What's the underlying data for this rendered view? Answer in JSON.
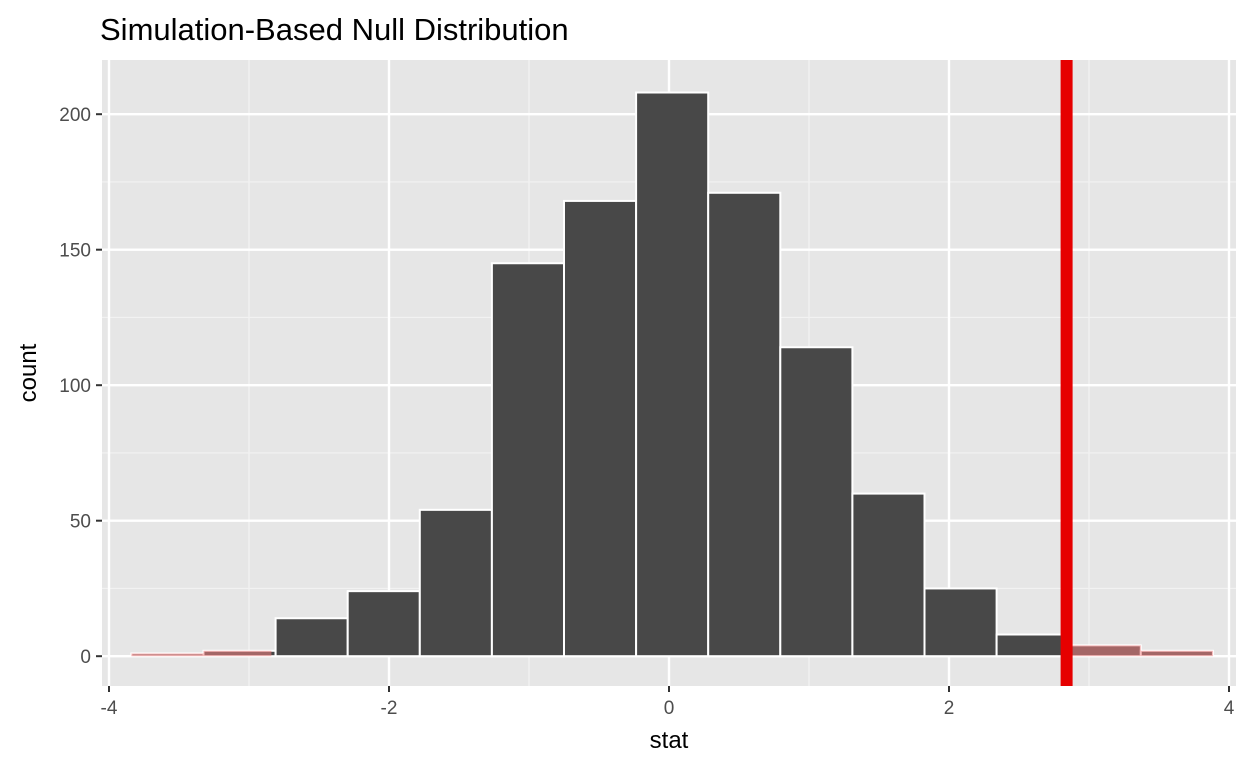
{
  "chart_data": {
    "type": "bar",
    "title": "Simulation-Based Null Distribution",
    "xlabel": "stat",
    "ylabel": "count",
    "xlim": [
      -4.05,
      4.05
    ],
    "ylim": [
      -11,
      220
    ],
    "x_ticks": [
      -4,
      -2,
      0,
      2,
      4
    ],
    "y_ticks": [
      0,
      50,
      100,
      150,
      200
    ],
    "bin_width": 0.515,
    "bins": [
      {
        "x0": -3.84,
        "x1": -3.325,
        "count": 1
      },
      {
        "x0": -3.325,
        "x1": -2.81,
        "count": 2
      },
      {
        "x0": -2.81,
        "x1": -2.295,
        "count": 14
      },
      {
        "x0": -2.295,
        "x1": -1.78,
        "count": 24
      },
      {
        "x0": -1.78,
        "x1": -1.265,
        "count": 54
      },
      {
        "x0": -1.265,
        "x1": -0.75,
        "count": 145
      },
      {
        "x0": -0.75,
        "x1": -0.235,
        "count": 168
      },
      {
        "x0": -0.235,
        "x1": 0.28,
        "count": 208
      },
      {
        "x0": 0.28,
        "x1": 0.795,
        "count": 171
      },
      {
        "x0": 0.795,
        "x1": 1.31,
        "count": 114
      },
      {
        "x0": 1.31,
        "x1": 1.825,
        "count": 60
      },
      {
        "x0": 1.825,
        "x1": 2.34,
        "count": 25
      },
      {
        "x0": 2.34,
        "x1": 2.855,
        "count": 8
      },
      {
        "x0": 2.855,
        "x1": 3.37,
        "count": 4
      },
      {
        "x0": 3.37,
        "x1": 3.885,
        "count": 2
      }
    ],
    "observed_stat": 2.84,
    "shade_direction": "both",
    "shade_regions": [
      [
        -4.05,
        -2.84
      ],
      [
        2.84,
        4.05
      ]
    ],
    "grid": true,
    "colors": {
      "panel_background": "#e6e6e6",
      "grid_major": "#ffffff",
      "grid_minor": "#f2f2f2",
      "bar_fill": "#484848",
      "bar_outline": "#ffffff",
      "shade_fill": "#f08080",
      "shade_opacity": 0.55,
      "observed_line": "#e60000",
      "tick_label": "#4d4d4d"
    }
  }
}
